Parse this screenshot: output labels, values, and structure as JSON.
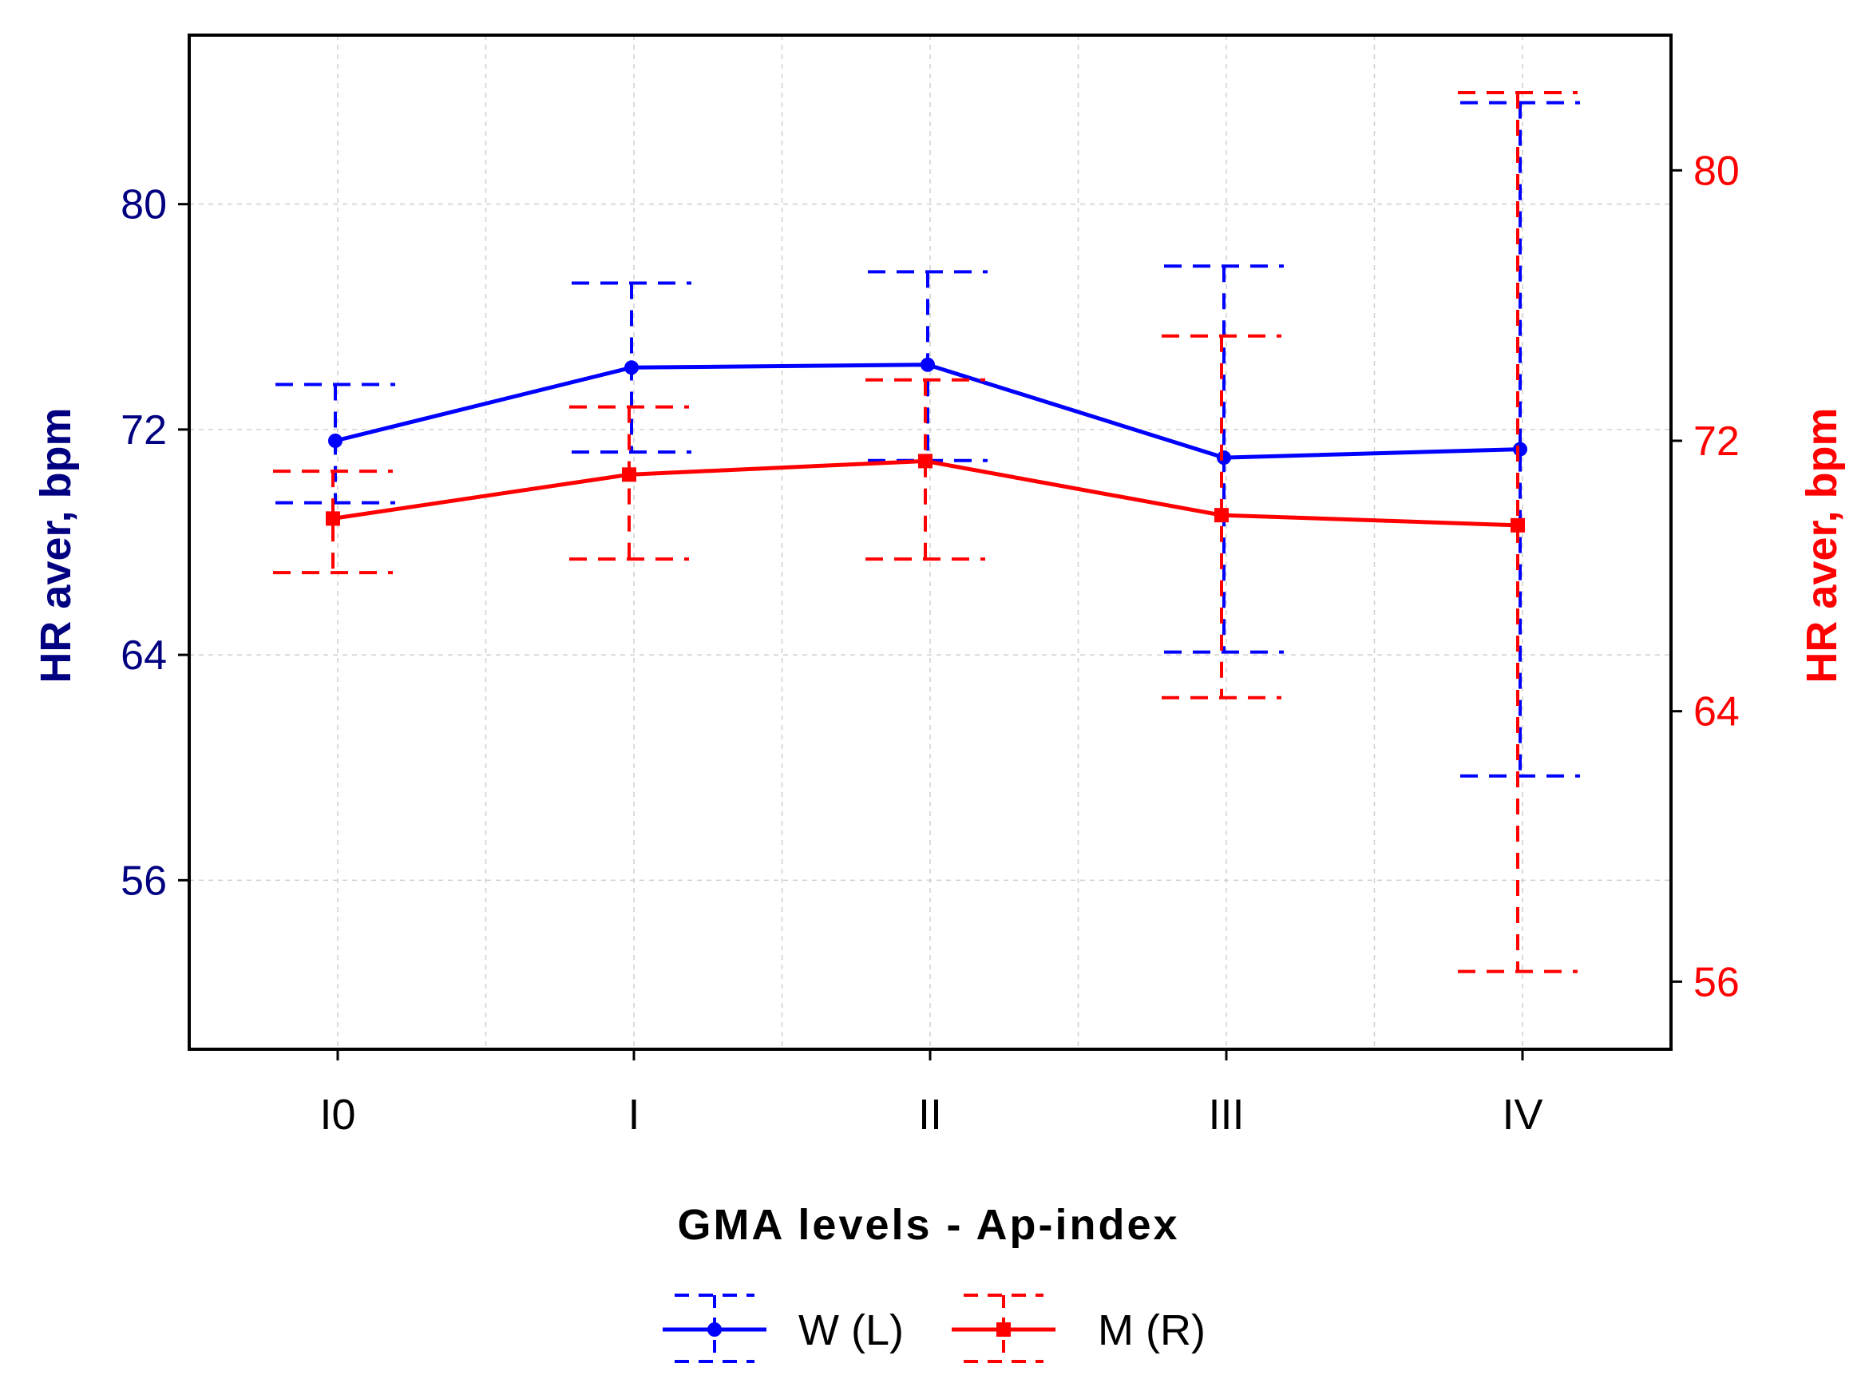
{
  "chart_data": {
    "type": "line",
    "title": "",
    "xlabel": "GMA levels - Ap-index",
    "categories": [
      "I0",
      "I",
      "II",
      "III",
      "IV"
    ],
    "y_left": {
      "label": "HR aver, bpm",
      "range": [
        50,
        86
      ],
      "ticks": [
        56,
        64,
        72,
        80
      ],
      "color": "#000080"
    },
    "y_right": {
      "label": "HR aver, bpm",
      "range": [
        54,
        84
      ],
      "ticks": [
        56,
        64,
        72,
        80
      ],
      "color": "#ff0000"
    },
    "grid": true,
    "legend_position": "bottom-center",
    "series": [
      {
        "name": "W (L)",
        "axis": "left",
        "color": "#0000ff",
        "marker": "circle",
        "values": [
          71.6,
          74.2,
          74.3,
          71.0,
          71.3
        ],
        "ci_upper": [
          73.6,
          77.2,
          77.6,
          77.8,
          83.6
        ],
        "ci_lower": [
          69.4,
          71.2,
          70.9,
          64.1,
          59.7
        ]
      },
      {
        "name": "M (R)",
        "axis": "right",
        "color": "#ff0000",
        "marker": "square",
        "values": [
          69.7,
          71.0,
          71.4,
          69.8,
          69.5
        ],
        "ci_upper": [
          71.1,
          73.0,
          73.8,
          75.1,
          82.3
        ],
        "ci_lower": [
          68.1,
          68.5,
          68.5,
          64.4,
          56.3
        ]
      }
    ]
  }
}
